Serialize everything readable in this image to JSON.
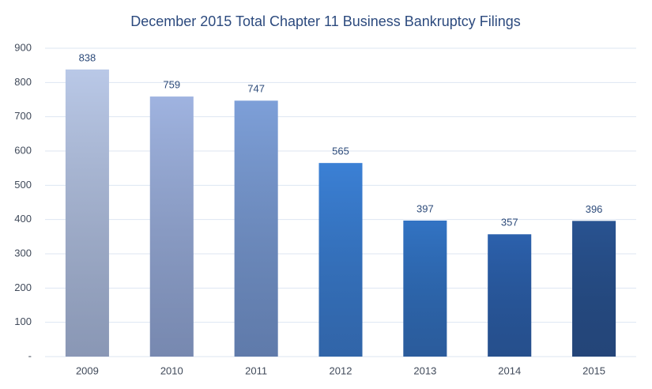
{
  "chart_data": {
    "type": "bar",
    "title": "December 2015 Total Chapter 11 Business Bankruptcy Filings",
    "categories": [
      "2009",
      "2010",
      "2011",
      "2012",
      "2013",
      "2014",
      "2015"
    ],
    "values": [
      838,
      759,
      747,
      565,
      397,
      357,
      396
    ],
    "colors": [
      "#b9c8e7",
      "#9fb3e0",
      "#7d9fd8",
      "#3b80d5",
      "#3273c3",
      "#2c61ad",
      "#295391"
    ],
    "ylim": [
      0,
      900
    ],
    "yticks": [
      {
        "value": 0,
        "label": "-"
      },
      100,
      200,
      300,
      400,
      500,
      600,
      700,
      800,
      900
    ],
    "grid": true
  }
}
